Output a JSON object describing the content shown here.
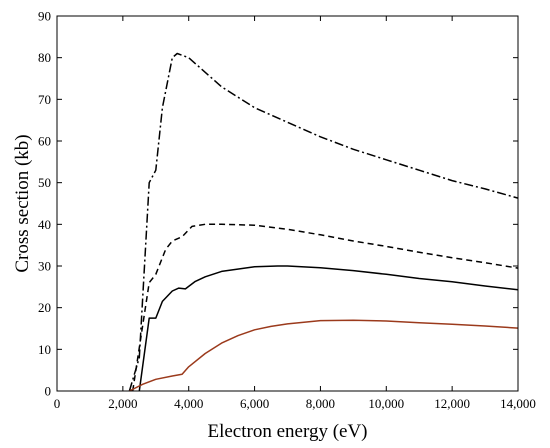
{
  "chart_data": {
    "type": "line",
    "title": "",
    "xlabel": "Electron energy (eV)",
    "ylabel": "Cross section (kb)",
    "xlim": [
      0,
      14000
    ],
    "ylim": [
      0,
      90
    ],
    "x_ticks": [
      0,
      2000,
      4000,
      6000,
      8000,
      10000,
      12000,
      14000
    ],
    "x_tick_labels": [
      "0",
      "2,000",
      "4,000",
      "6,000",
      "8,000",
      "10,000",
      "12,000",
      "14,000"
    ],
    "y_ticks": [
      0,
      10,
      20,
      30,
      40,
      50,
      60,
      70,
      80,
      90
    ],
    "y_tick_labels": [
      "0",
      "10",
      "20",
      "30",
      "40",
      "50",
      "60",
      "70",
      "80",
      "90"
    ],
    "grid": false,
    "legend": "none",
    "series": [
      {
        "style": "dash-dot",
        "color": "#000000",
        "points": [
          [
            2200,
            0
          ],
          [
            2500,
            8
          ],
          [
            2800,
            50
          ],
          [
            3000,
            53
          ],
          [
            3200,
            68
          ],
          [
            3500,
            80
          ],
          [
            3650,
            81
          ],
          [
            4000,
            80
          ],
          [
            5000,
            73
          ],
          [
            6000,
            68
          ],
          [
            7000,
            64.5
          ],
          [
            8000,
            61
          ],
          [
            9000,
            58
          ],
          [
            10000,
            55.5
          ],
          [
            11000,
            53
          ],
          [
            12000,
            50.5
          ],
          [
            13000,
            48.5
          ],
          [
            14000,
            46.3
          ]
        ]
      },
      {
        "style": "dashed",
        "color": "#000000",
        "points": [
          [
            2300,
            0
          ],
          [
            2800,
            26
          ],
          [
            3000,
            28
          ],
          [
            3300,
            34
          ],
          [
            3500,
            36
          ],
          [
            3800,
            37
          ],
          [
            4100,
            39.5
          ],
          [
            4500,
            40
          ],
          [
            5000,
            40
          ],
          [
            6000,
            39.8
          ],
          [
            7000,
            38.8
          ],
          [
            8000,
            37.5
          ],
          [
            9000,
            36
          ],
          [
            10000,
            34.7
          ],
          [
            11000,
            33.3
          ],
          [
            12000,
            32
          ],
          [
            13000,
            30.8
          ],
          [
            14000,
            29.5
          ]
        ]
      },
      {
        "style": "solid",
        "color": "#000000",
        "points": [
          [
            2500,
            0
          ],
          [
            2800,
            17.5
          ],
          [
            3000,
            17.5
          ],
          [
            3200,
            21.5
          ],
          [
            3500,
            24
          ],
          [
            3700,
            24.7
          ],
          [
            3900,
            24.5
          ],
          [
            4200,
            26.3
          ],
          [
            4500,
            27.4
          ],
          [
            5000,
            28.7
          ],
          [
            6000,
            29.8
          ],
          [
            6700,
            30
          ],
          [
            7000,
            30
          ],
          [
            8000,
            29.6
          ],
          [
            9000,
            28.9
          ],
          [
            10000,
            28
          ],
          [
            11000,
            27
          ],
          [
            12000,
            26.2
          ],
          [
            13000,
            25.2
          ],
          [
            14000,
            24.3
          ]
        ]
      },
      {
        "style": "solid",
        "color": "#9b3a1c",
        "points": [
          [
            2200,
            0
          ],
          [
            2600,
            1.6
          ],
          [
            3000,
            2.8
          ],
          [
            3500,
            3.6
          ],
          [
            3800,
            4
          ],
          [
            4000,
            5.8
          ],
          [
            4500,
            9
          ],
          [
            5000,
            11.5
          ],
          [
            5500,
            13.3
          ],
          [
            6000,
            14.7
          ],
          [
            6500,
            15.5
          ],
          [
            7000,
            16.1
          ],
          [
            7500,
            16.5
          ],
          [
            8000,
            16.9
          ],
          [
            9000,
            17
          ],
          [
            10000,
            16.8
          ],
          [
            11000,
            16.4
          ],
          [
            12000,
            16
          ],
          [
            13000,
            15.6
          ],
          [
            14000,
            15.1
          ]
        ]
      }
    ]
  }
}
